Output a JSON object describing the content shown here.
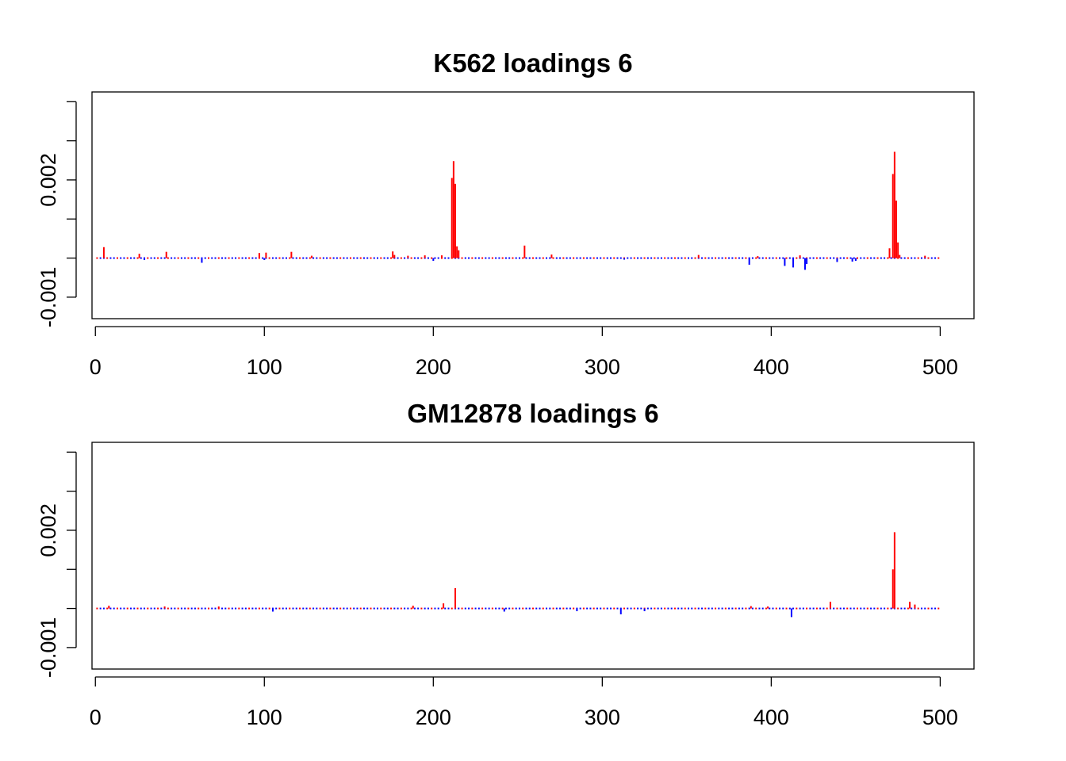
{
  "chart_data": [
    {
      "type": "bar",
      "title": "K562 loadings 6",
      "xlabel": "",
      "ylabel": "",
      "xlim": [
        -2,
        520
      ],
      "ylim": [
        -0.00155,
        0.00425
      ],
      "x_ticks": [
        0,
        100,
        200,
        300,
        400,
        500
      ],
      "x_tick_labels": [
        "0",
        "100",
        "200",
        "300",
        "400",
        "500"
      ],
      "y_ticks": [
        -0.001,
        0,
        0.001,
        0.002,
        0.003,
        0.004
      ],
      "y_tick_labels": [
        "-0.001",
        "",
        "",
        "0.002",
        "",
        ""
      ],
      "colors": {
        "positive": "#ff0000",
        "negative": "#0000ff"
      },
      "n_points": 500,
      "baseline": 0,
      "spikes": [
        {
          "x": 5,
          "y": 0.00028
        },
        {
          "x": 26,
          "y": 0.00011
        },
        {
          "x": 29,
          "y": -5e-05
        },
        {
          "x": 42,
          "y": 0.00016
        },
        {
          "x": 63,
          "y": -0.00012
        },
        {
          "x": 97,
          "y": 0.00013
        },
        {
          "x": 100,
          "y": -5e-05
        },
        {
          "x": 101,
          "y": 0.00014
        },
        {
          "x": 116,
          "y": 0.00016
        },
        {
          "x": 128,
          "y": 6e-05
        },
        {
          "x": 176,
          "y": 0.00017
        },
        {
          "x": 177,
          "y": 8e-05
        },
        {
          "x": 185,
          "y": 6e-05
        },
        {
          "x": 195,
          "y": 7e-05
        },
        {
          "x": 200,
          "y": -7e-05
        },
        {
          "x": 205,
          "y": 7e-05
        },
        {
          "x": 211,
          "y": 0.00205
        },
        {
          "x": 212,
          "y": 0.00248
        },
        {
          "x": 213,
          "y": 0.0019
        },
        {
          "x": 214,
          "y": 0.0003
        },
        {
          "x": 215,
          "y": 0.0002
        },
        {
          "x": 254,
          "y": 0.00032
        },
        {
          "x": 270,
          "y": 9e-05
        },
        {
          "x": 313,
          "y": -4e-05
        },
        {
          "x": 357,
          "y": 8e-05
        },
        {
          "x": 387,
          "y": -0.00017
        },
        {
          "x": 392,
          "y": 5e-05
        },
        {
          "x": 408,
          "y": -0.0002
        },
        {
          "x": 413,
          "y": -0.00024
        },
        {
          "x": 417,
          "y": 7e-05
        },
        {
          "x": 420,
          "y": -0.0003
        },
        {
          "x": 421,
          "y": -0.00015
        },
        {
          "x": 439,
          "y": -0.0001
        },
        {
          "x": 448,
          "y": -9e-05
        },
        {
          "x": 450,
          "y": -7e-05
        },
        {
          "x": 470,
          "y": 0.00025
        },
        {
          "x": 472,
          "y": 0.00215
        },
        {
          "x": 473,
          "y": 0.00272
        },
        {
          "x": 474,
          "y": 0.00147
        },
        {
          "x": 475,
          "y": 0.0004
        },
        {
          "x": 476,
          "y": 8e-05
        },
        {
          "x": 491,
          "y": 6e-05
        }
      ]
    },
    {
      "type": "bar",
      "title": "GM12878 loadings 6",
      "xlabel": "",
      "ylabel": "",
      "xlim": [
        -2,
        520
      ],
      "ylim": [
        -0.00155,
        0.00425
      ],
      "x_ticks": [
        0,
        100,
        200,
        300,
        400,
        500
      ],
      "x_tick_labels": [
        "0",
        "100",
        "200",
        "300",
        "400",
        "500"
      ],
      "y_ticks": [
        -0.001,
        0,
        0.001,
        0.002,
        0.003,
        0.004
      ],
      "y_tick_labels": [
        "-0.001",
        "",
        "",
        "0.002",
        "",
        ""
      ],
      "colors": {
        "positive": "#ff0000",
        "negative": "#0000ff"
      },
      "n_points": 500,
      "baseline": 0,
      "spikes": [
        {
          "x": 8,
          "y": 7e-05
        },
        {
          "x": 41,
          "y": 5e-05
        },
        {
          "x": 73,
          "y": 5e-05
        },
        {
          "x": 105,
          "y": -8e-05
        },
        {
          "x": 188,
          "y": 7e-05
        },
        {
          "x": 206,
          "y": 0.00013
        },
        {
          "x": 213,
          "y": 0.00052
        },
        {
          "x": 242,
          "y": -8e-05
        },
        {
          "x": 285,
          "y": -7e-05
        },
        {
          "x": 311,
          "y": -0.00015
        },
        {
          "x": 325,
          "y": -7e-05
        },
        {
          "x": 388,
          "y": 6e-05
        },
        {
          "x": 398,
          "y": 5e-05
        },
        {
          "x": 412,
          "y": -0.00022
        },
        {
          "x": 435,
          "y": 0.00017
        },
        {
          "x": 472,
          "y": 0.001
        },
        {
          "x": 473,
          "y": 0.00195
        },
        {
          "x": 482,
          "y": 0.00017
        },
        {
          "x": 485,
          "y": 0.0001
        }
      ]
    }
  ]
}
